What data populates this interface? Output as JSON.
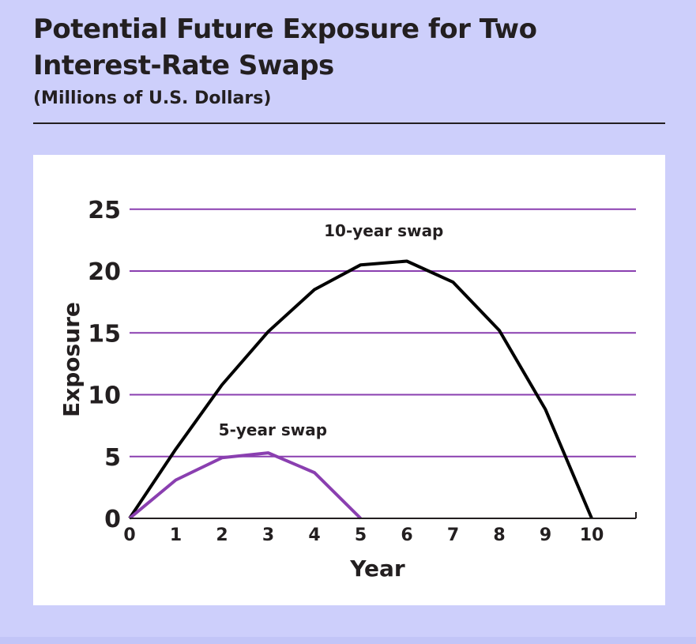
{
  "chart_data": {
    "type": "line",
    "title": "Potential Future Exposure for Two Interest-Rate Swaps",
    "subtitle": "(Millions of U.S. Dollars)",
    "xlabel": "Year",
    "ylabel": "Exposure",
    "xlim": [
      0,
      11
    ],
    "ylim": [
      0,
      25
    ],
    "xticks": [
      0,
      1,
      2,
      3,
      4,
      5,
      6,
      7,
      8,
      9,
      10
    ],
    "yticks": [
      0,
      5,
      10,
      15,
      20,
      25
    ],
    "grid": true,
    "legend": "none",
    "series": [
      {
        "name": "10-year swap",
        "color": "#000000",
        "x": [
          0,
          1,
          2,
          3,
          4,
          5,
          6,
          7,
          8,
          9,
          10
        ],
        "values": [
          0,
          5.6,
          10.8,
          15.1,
          18.5,
          20.5,
          20.8,
          19.1,
          15.2,
          8.8,
          0
        ]
      },
      {
        "name": "5-year swap",
        "color": "#8a3fb0",
        "x": [
          0,
          1,
          2,
          3,
          4,
          5
        ],
        "values": [
          0,
          3.1,
          4.9,
          5.3,
          3.7,
          0
        ]
      }
    ],
    "annotations": [
      {
        "text": "10-year swap",
        "x": 5.5,
        "y": 22.8
      },
      {
        "text": "5-year swap",
        "x": 3.1,
        "y": 6.7
      }
    ],
    "colors": {
      "grid": "#8a3fb0",
      "axis": "#231f20",
      "background": "#ffffff",
      "frame": "#cdcffb"
    }
  }
}
